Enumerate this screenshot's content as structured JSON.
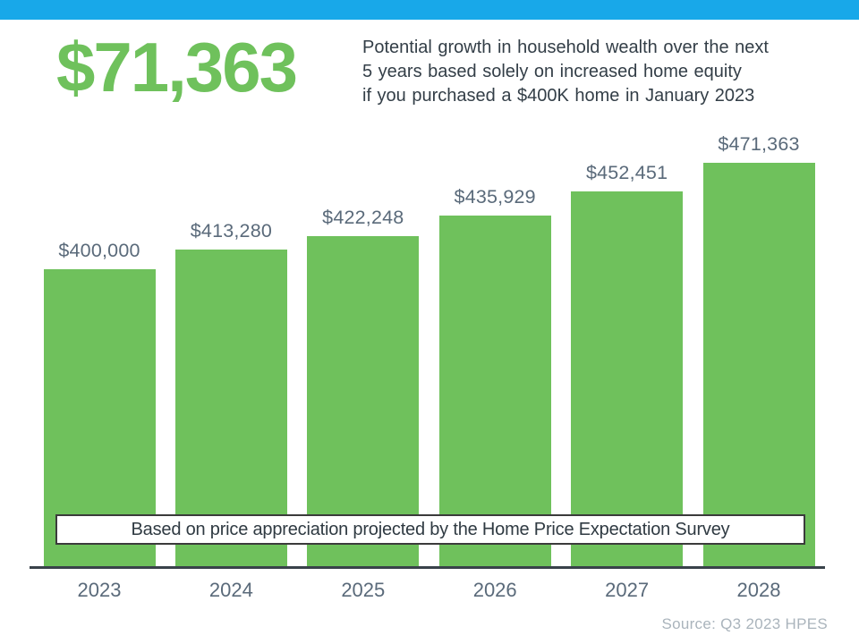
{
  "page": {
    "top_bar_color": "#18a8e9",
    "background_color": "#ffffff"
  },
  "header": {
    "headline": "$71,363",
    "headline_color": "#6fc15c",
    "description_lines": [
      "Potential growth in household wealth over the next",
      "5 years based solely on increased home equity",
      "if you purchased a $400K home in January 2023"
    ]
  },
  "chart_data": {
    "type": "bar",
    "title": "",
    "xlabel": "",
    "ylabel": "",
    "categories": [
      "2023",
      "2024",
      "2025",
      "2026",
      "2027",
      "2028"
    ],
    "values": [
      400000,
      413280,
      422248,
      435929,
      452451,
      471363
    ],
    "value_labels": [
      "$400,000",
      "$413,280",
      "$422,248",
      "$435,929",
      "$452,451",
      "$471,363"
    ],
    "bar_color": "#6fc15c",
    "label_color": "#5a6a7a",
    "axis_line_color": "#39424a",
    "ylim": [
      200000,
      480000
    ],
    "grid": false,
    "legend": false
  },
  "annotation_box": {
    "text": "Based on price appreciation projected by the Home Price Expectation Survey"
  },
  "source_note": {
    "text": "Source: Q3 2023 HPES"
  }
}
